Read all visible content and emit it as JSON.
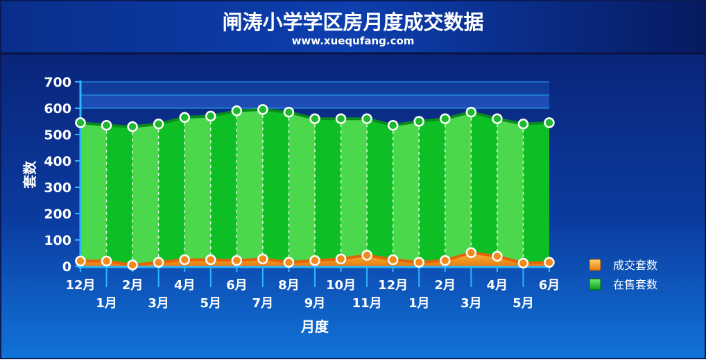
{
  "chart_data": {
    "type": "area",
    "title": "闸涛小学学区房月度成交数据",
    "subtitle": "www.xuequfang.com",
    "xlabel": "月度",
    "ylabel": "套数",
    "ylim": [
      0,
      700
    ],
    "yticks": [
      0,
      100,
      200,
      300,
      400,
      500,
      600,
      700
    ],
    "categories": [
      "12月",
      "1月",
      "2月",
      "3月",
      "4月",
      "5月",
      "6月",
      "7月",
      "8月",
      "9月",
      "10月",
      "11月",
      "12月",
      "1月",
      "2月",
      "3月",
      "4月",
      "5月",
      "6月"
    ],
    "series": [
      {
        "name": "成交套数",
        "values": [
          20,
          20,
          5,
          15,
          25,
          25,
          22,
          28,
          15,
          22,
          28,
          42,
          25,
          15,
          22,
          52,
          38,
          12,
          15
        ]
      },
      {
        "name": "在售套数",
        "values": [
          545,
          535,
          530,
          540,
          565,
          570,
          590,
          595,
          585,
          560,
          560,
          560,
          535,
          550,
          560,
          585,
          560,
          540,
          545
        ]
      }
    ],
    "colors": {
      "background_top": "#0b2f8f",
      "background_bottom": "#0f6fd6",
      "sales_area": "#f5a01a",
      "sales_line": "#e56a0a",
      "listing_area_dark": "#0ab02a",
      "listing_area_light": "#4fd64f",
      "listing_line": "#0a8a1c",
      "axis": "#2bb7ff",
      "band": "#1e4db4"
    },
    "legend_position": "right",
    "grid": true
  }
}
